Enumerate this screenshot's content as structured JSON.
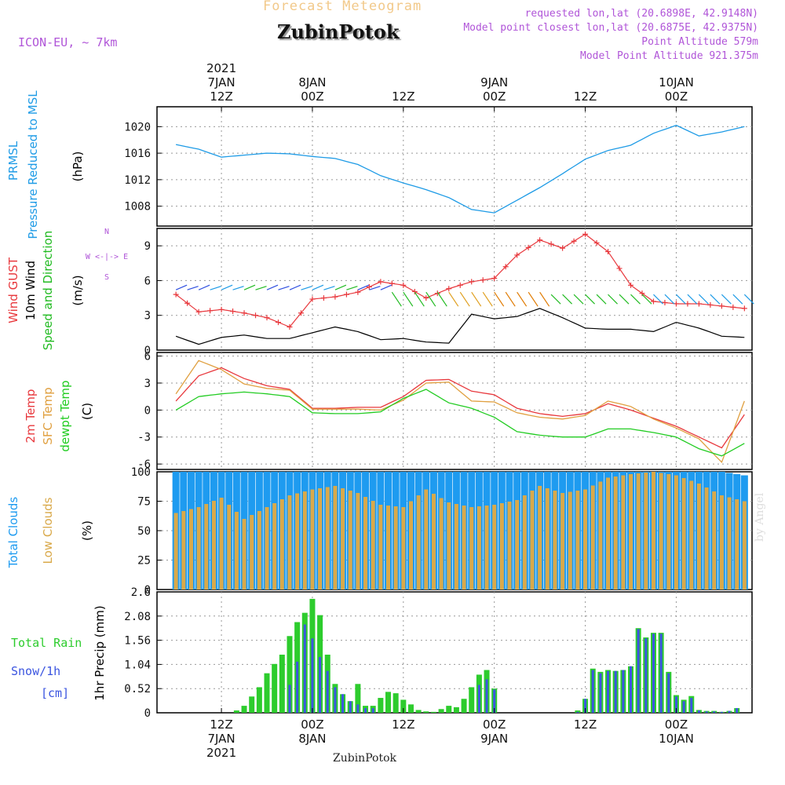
{
  "header": {
    "title": "Forecast Meteogram",
    "station": "ZubinPotok",
    "model": "ICON-EU, ~ 7km",
    "requested": "requested lon,lat (20.6898E, 42.9148N)",
    "closest": "Model point closest lon,lat (20.6875E, 42.9375N)",
    "altitude": "Point Altitude 579m",
    "model_altitude": "Model Point Altitude 921.375m",
    "footer": "ZubinPotok",
    "credit": "by Angel"
  },
  "colors": {
    "pressure": "#1e9be6",
    "gust": "#e8383d",
    "wind": "#000000",
    "arrows": "#22bb22",
    "temp2m": "#e8383d",
    "sfc": "#e0a040",
    "dewpt": "#22cc22",
    "total_clouds": "#1e9bf0",
    "low_clouds": "#d9a94a",
    "rain": "#2dcc2d",
    "snow": "#3b55e0",
    "purple": "#b055d8",
    "title": "#f2c98a"
  },
  "chart_data": [
    {
      "type": "line",
      "title": "",
      "ylabel_lines": [
        "PRMSL",
        "Pressure Reduced to MSL"
      ],
      "unit": "(hPa)",
      "ylim": [
        1005,
        1023
      ],
      "yticks": [
        1008,
        1012,
        1016,
        1020
      ],
      "x_hours": [
        0,
        3,
        6,
        9,
        12,
        15,
        18,
        21,
        24,
        27,
        30,
        33,
        36,
        39,
        42,
        45,
        48,
        51,
        54,
        57,
        60,
        63,
        66,
        69,
        72,
        75
      ],
      "series": [
        {
          "name": "PRMSL",
          "values": [
            1017.3,
            1016.6,
            1015.4,
            1015.7,
            1016.0,
            1015.9,
            1015.5,
            1015.2,
            1014.3,
            1012.6,
            1011.5,
            1010.5,
            1009.3,
            1007.5,
            1007.0,
            1008.9,
            1010.8,
            1012.9,
            1015.1,
            1016.4,
            1017.2,
            1019.0,
            1020.2,
            1018.6,
            1019.2,
            1020.0
          ]
        }
      ]
    },
    {
      "type": "line",
      "ylabel_lines": [
        "Wind GUST",
        "10m Wind",
        "Speed and Direction"
      ],
      "unit": "(m/s)",
      "compass": [
        "N",
        "W <-|-> E",
        "S"
      ],
      "ylim": [
        0,
        10.5
      ],
      "yticks": [
        0,
        3,
        6,
        9
      ],
      "x_hours": [
        0,
        3,
        6,
        9,
        12,
        15,
        18,
        21,
        24,
        27,
        30,
        33,
        36,
        39,
        42,
        45,
        48,
        51,
        54,
        57,
        60,
        63,
        66,
        69,
        72,
        75
      ],
      "series": [
        {
          "name": "Wind GUST",
          "values": [
            4.8,
            3.3,
            3.5,
            3.2,
            2.8,
            2.0,
            4.4,
            4.6,
            5.0,
            5.9,
            5.6,
            4.5,
            5.3,
            5.9,
            6.2,
            8.2,
            9.5,
            8.8,
            10.0,
            8.5,
            5.6,
            4.2,
            4.0,
            4.0,
            3.8,
            3.6
          ]
        },
        {
          "name": "10m Wind",
          "values": [
            1.2,
            0.5,
            1.1,
            1.3,
            1.0,
            1.0,
            1.5,
            2.0,
            1.6,
            0.9,
            1.0,
            0.7,
            0.6,
            3.1,
            2.7,
            2.9,
            3.6,
            2.8,
            1.9,
            1.8,
            1.8,
            1.6,
            2.4,
            1.9,
            1.2,
            1.1
          ]
        }
      ]
    },
    {
      "type": "line",
      "ylabel_lines": [
        "2m Temp",
        "SFC Temp",
        "dewpt Temp"
      ],
      "unit": "(C)",
      "ylim": [
        -6.6,
        6.4
      ],
      "yticks": [
        -6,
        -3,
        0,
        3,
        6
      ],
      "x_hours": [
        0,
        3,
        6,
        9,
        12,
        15,
        18,
        21,
        24,
        27,
        30,
        33,
        36,
        39,
        42,
        45,
        48,
        51,
        54,
        57,
        60,
        63,
        66,
        69,
        72,
        75
      ],
      "series": [
        {
          "name": "2m Temp",
          "values": [
            1.0,
            3.8,
            4.7,
            3.5,
            2.7,
            2.3,
            0.2,
            0.2,
            0.3,
            0.3,
            1.5,
            3.3,
            3.4,
            2.1,
            1.7,
            0.2,
            -0.4,
            -0.7,
            -0.4,
            0.7,
            0.0,
            -0.9,
            -1.8,
            -3.0,
            -4.2,
            -0.5
          ]
        },
        {
          "name": "SFC Temp",
          "values": [
            1.8,
            5.5,
            4.5,
            2.9,
            2.4,
            2.2,
            0.1,
            0.1,
            0.1,
            0.0,
            1.1,
            3.0,
            3.1,
            1.0,
            0.9,
            -0.3,
            -0.8,
            -1.0,
            -0.6,
            1.0,
            0.4,
            -1.0,
            -2.0,
            -3.2,
            -5.8,
            1.0
          ]
        },
        {
          "name": "dewpt Temp",
          "values": [
            0.0,
            1.5,
            1.8,
            2.0,
            1.8,
            1.5,
            -0.3,
            -0.4,
            -0.4,
            -0.2,
            1.3,
            2.3,
            0.8,
            0.2,
            -0.8,
            -2.4,
            -2.8,
            -3.0,
            -3.0,
            -2.1,
            -2.1,
            -2.5,
            -3.0,
            -4.3,
            -5.1,
            -3.7
          ]
        }
      ]
    },
    {
      "type": "bar",
      "ylabel_lines": [
        "Total Clouds",
        "Low Clouds"
      ],
      "unit": "(%)",
      "ylim": [
        0,
        100
      ],
      "yticks": [
        0,
        25,
        50,
        75,
        100
      ],
      "x_hours": [
        0,
        3,
        6,
        9,
        12,
        15,
        18,
        21,
        24,
        27,
        30,
        33,
        36,
        39,
        42,
        45,
        48,
        51,
        54,
        57,
        60,
        63,
        66,
        69,
        72,
        75
      ],
      "series": [
        {
          "name": "Total Clouds",
          "values": [
            100,
            100,
            100,
            100,
            100,
            100,
            100,
            100,
            100,
            100,
            100,
            100,
            100,
            100,
            100,
            100,
            100,
            100,
            100,
            100,
            100,
            100,
            100,
            100,
            100,
            97
          ]
        },
        {
          "name": "Low Clouds",
          "values": [
            65,
            70,
            78,
            60,
            70,
            80,
            85,
            88,
            82,
            72,
            70,
            85,
            74,
            70,
            72,
            76,
            88,
            82,
            85,
            95,
            98,
            100,
            97,
            90,
            80,
            75
          ]
        }
      ]
    },
    {
      "type": "bar",
      "ylabel_lines": [
        "Total Rain",
        "Snow/1h",
        "[cm]"
      ],
      "unit": "1hr Precip (mm)",
      "ylim": [
        0,
        2.6
      ],
      "yticks": [
        0,
        0.52,
        1.04,
        1.56,
        2.08,
        2.6
      ],
      "tick_labels": [
        "0",
        "0.52",
        "1.04",
        "1.56",
        "2.08",
        "2.6"
      ],
      "x_hours": [
        2,
        3,
        4,
        5,
        6,
        7,
        8,
        9,
        10,
        11,
        12,
        13,
        14,
        15,
        16,
        17,
        18,
        19,
        20,
        21,
        22,
        23,
        24,
        25,
        26,
        27,
        28,
        29,
        30,
        31,
        32,
        33,
        34,
        35,
        36,
        37,
        38,
        39,
        40,
        41,
        42,
        43,
        44,
        45,
        46,
        47,
        48,
        49,
        50,
        51,
        52,
        53,
        54,
        55,
        56,
        57,
        58,
        59,
        60,
        61,
        62,
        63,
        64,
        65,
        66,
        67,
        68,
        69,
        70,
        71,
        72,
        73,
        74,
        75
      ],
      "series": [
        {
          "name": "Total Rain",
          "values": [
            0,
            0,
            0,
            0,
            0,
            0,
            0.05,
            0.15,
            0.35,
            0.55,
            0.85,
            1.05,
            1.25,
            1.65,
            1.95,
            2.15,
            2.45,
            2.1,
            1.25,
            0.62,
            0.4,
            0.25,
            0.62,
            0.15,
            0.15,
            0.32,
            0.45,
            0.42,
            0.28,
            0.18,
            0.06,
            0.03,
            0.02,
            0.08,
            0.15,
            0.12,
            0.3,
            0.55,
            0.82,
            0.92,
            0.52,
            0,
            0,
            0,
            0,
            0,
            0,
            0,
            0,
            0,
            0,
            0.05,
            0.3,
            0.95,
            0.88,
            0.92,
            0.9,
            0.92,
            1.0,
            1.82,
            1.62,
            1.72,
            1.72,
            0.88,
            0.38,
            0.28,
            0.36,
            0.06,
            0.04,
            0.04,
            0.02,
            0.04,
            0.1,
            0
          ]
        },
        {
          "name": "Snow/1h",
          "values": [
            0,
            0,
            0,
            0,
            0,
            0,
            0,
            0,
            0,
            0,
            0,
            0,
            0,
            0.6,
            1.1,
            1.9,
            1.6,
            1.2,
            0.9,
            0.55,
            0.4,
            0.25,
            0.18,
            0.1,
            0.1,
            0,
            0,
            0,
            0,
            0,
            0,
            0,
            0,
            0,
            0,
            0,
            0,
            0,
            0.6,
            0.72,
            0.5,
            0,
            0,
            0,
            0,
            0,
            0,
            0,
            0,
            0,
            0,
            0.02,
            0.3,
            0.92,
            0.85,
            0.9,
            0.9,
            0.92,
            1.0,
            1.8,
            1.6,
            1.7,
            1.7,
            0.85,
            0.35,
            0.25,
            0.32,
            0.05,
            0.03,
            0.03,
            0.02,
            0.04,
            0.1,
            0
          ]
        }
      ]
    }
  ],
  "x_axis": {
    "top": [
      {
        "hour": 6,
        "lines": [
          "2021",
          "7JAN",
          "12Z"
        ]
      },
      {
        "hour": 18,
        "lines": [
          "8JAN",
          "00Z"
        ]
      },
      {
        "hour": 30,
        "lines": [
          "12Z"
        ]
      },
      {
        "hour": 42,
        "lines": [
          "9JAN",
          "00Z"
        ]
      },
      {
        "hour": 54,
        "lines": [
          "12Z"
        ]
      },
      {
        "hour": 66,
        "lines": [
          "10JAN",
          "00Z"
        ]
      }
    ],
    "bottom": [
      {
        "hour": 6,
        "lines": [
          "12Z",
          "7JAN",
          "2021"
        ]
      },
      {
        "hour": 18,
        "lines": [
          "00Z",
          "8JAN"
        ]
      },
      {
        "hour": 30,
        "lines": [
          "12Z"
        ]
      },
      {
        "hour": 42,
        "lines": [
          "00Z",
          "9JAN"
        ]
      },
      {
        "hour": 54,
        "lines": [
          "12Z"
        ]
      },
      {
        "hour": 66,
        "lines": [
          "00Z",
          "10JAN"
        ]
      }
    ]
  }
}
